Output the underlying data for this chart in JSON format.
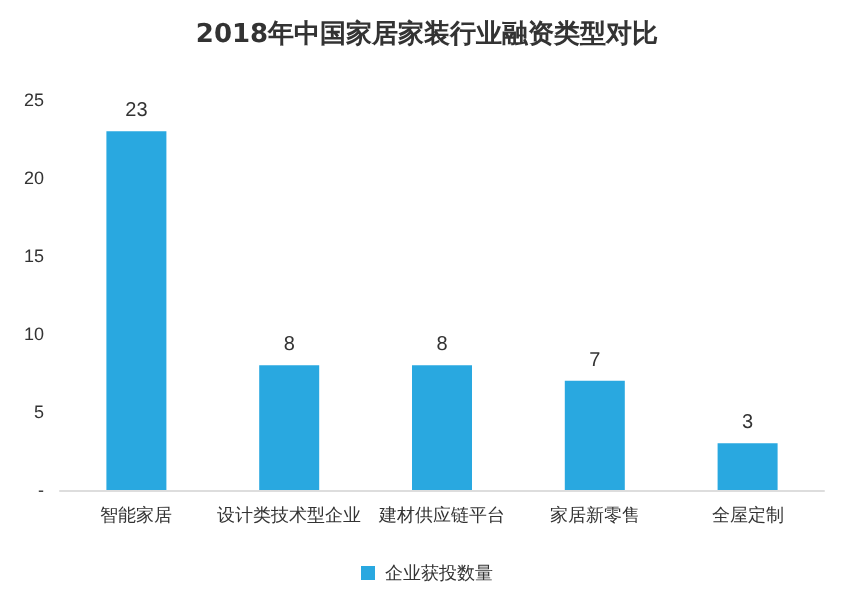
{
  "chart_data": {
    "type": "bar",
    "title": "2018年中国家居家装行业融资类型对比",
    "categories": [
      "智能家居",
      "设计类技术型企业",
      "建材供应链平台",
      "家居新零售",
      "全屋定制"
    ],
    "series": [
      {
        "name": "企业获投数量",
        "color": "#29a8e0",
        "values": [
          23,
          8,
          8,
          7,
          3
        ]
      }
    ],
    "ylim": [
      0,
      25
    ],
    "yticks": [
      {
        "value": 0,
        "label": "-"
      },
      5,
      10,
      15,
      20,
      25
    ],
    "data_labels": true,
    "legend": "bottom",
    "grid": false
  }
}
